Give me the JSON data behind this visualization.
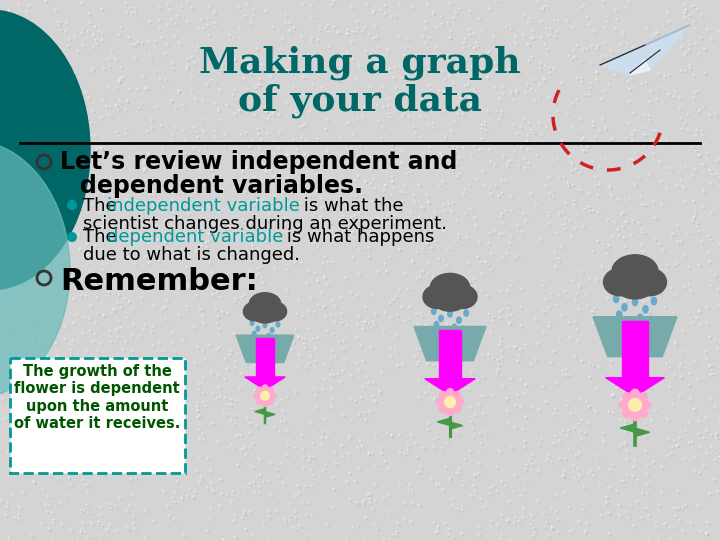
{
  "bg_color": "#d4d4d4",
  "title_line1": "Making a graph",
  "title_line2": "of your data",
  "title_color": "#006666",
  "title_fontsize": 26,
  "bullet1_text_line1": "Let’s review independent and",
  "bullet1_text_line2": "dependent variables.",
  "bullet1_color": "#000000",
  "bullet1_fontsize": 17,
  "highlight_color": "#009999",
  "sub_fontsize": 13,
  "bullet2_text": "Remember:",
  "bullet2_fontsize": 22,
  "box_text": "The growth of the\nflower is dependent\nupon the amount\nof water it receives.",
  "box_color": "#009999",
  "box_bg": "#ffffff",
  "separator_color": "#000000",
  "teal_circle_color1": "#006666",
  "teal_circle_color2": "#66bbbb",
  "cloud_color": "#555555",
  "funnel_color": "#77aaaa",
  "arrow_color": "#ff00ff",
  "drop_color": "#66aacc",
  "flower_petal": "#ffaacc",
  "flower_center": "#ffeeaa",
  "stem_color": "#449944",
  "dashed_circle_color": "#cc2222",
  "plane_color1": "#ccddee",
  "plane_color2": "#aabbcc",
  "plane_outline": "#222222"
}
